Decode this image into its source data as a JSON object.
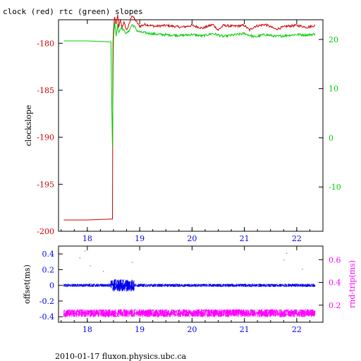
{
  "title": "clock (red) rtc (green) slopes",
  "footer": "2010-01-17 fluxon.physics.ubc.ca",
  "colors": {
    "red": "#cc0000",
    "green": "#00cc00",
    "blue": "#0000ee",
    "magenta": "#ff00ff",
    "axis": "#000000"
  },
  "chart_data": [
    {
      "type": "line",
      "ylabel_left": "clockslope",
      "xlim": [
        17.45,
        22.5
      ],
      "ylim_left": [
        -200,
        -177.5
      ],
      "ylim_right": [
        -19,
        24
      ],
      "x_ticks": [
        18,
        19,
        20,
        21,
        22
      ],
      "x_tick_labels": [
        "18",
        "19",
        "20",
        "21",
        "22"
      ],
      "y_ticks_left": [
        -180,
        -185,
        -190,
        -195,
        -200
      ],
      "y_tick_labels_left": [
        "-180",
        "-185",
        "-190",
        "-195",
        "-200"
      ],
      "y_ticks_right": [
        20,
        10,
        0,
        -10
      ],
      "y_tick_labels_right": [
        "20",
        "10",
        "0",
        "-10"
      ],
      "series": [
        {
          "name": "clock",
          "axis": "left",
          "color": "#cc0000",
          "x": [
            17.55,
            18.0,
            18.48,
            18.49,
            18.5,
            18.52,
            18.55,
            18.58,
            18.6,
            18.63,
            18.66,
            18.7,
            18.75,
            18.8,
            18.85,
            18.9,
            18.95,
            19.0,
            19.1,
            19.3,
            19.5,
            19.8,
            20.0,
            20.2,
            20.4,
            20.5,
            20.6,
            20.8,
            21.0,
            21.1,
            21.2,
            21.4,
            21.6,
            21.8,
            22.0,
            22.2,
            22.35
          ],
          "y": [
            -198.8,
            -198.8,
            -198.7,
            -180,
            -178.6,
            -177.2,
            -178,
            -177,
            -178.4,
            -177.5,
            -178.3,
            -177.8,
            -178.6,
            -178,
            -177,
            -177.4,
            -177.8,
            -178.2,
            -178,
            -178.2,
            -178.1,
            -178.3,
            -178.1,
            -178.4,
            -178,
            -178.6,
            -178.1,
            -178.2,
            -178.1,
            -178.6,
            -178.2,
            -178,
            -178.5,
            -178.2,
            -178.1,
            -178.3,
            -178.1
          ]
        },
        {
          "name": "rtc",
          "axis": "right",
          "color": "#00cc00",
          "x": [
            17.55,
            18.0,
            18.45,
            18.48,
            18.5,
            18.52,
            18.55,
            18.58,
            18.6,
            18.65,
            18.7,
            18.75,
            18.8,
            18.85,
            18.9,
            18.95,
            19.0,
            19.2,
            19.4,
            19.6,
            19.8,
            20.0,
            20.2,
            20.4,
            20.6,
            20.8,
            21.0,
            21.2,
            21.4,
            21.6,
            21.8,
            22.0,
            22.2,
            22.35
          ],
          "y": [
            19.7,
            19.7,
            19.5,
            -2,
            20,
            23.5,
            20.8,
            23,
            21.5,
            22.5,
            21.8,
            21.2,
            21.8,
            23,
            22.6,
            21.8,
            21.5,
            21.2,
            21,
            20.9,
            20.8,
            21,
            20.7,
            21.2,
            20.6,
            20.9,
            21.2,
            20.5,
            21,
            20.6,
            20.8,
            21,
            20.9,
            21.1
          ]
        }
      ]
    },
    {
      "type": "scatter",
      "ylabel_left": "offset(ms)",
      "ylabel_right": "rnd-trip(ms)",
      "xlim": [
        17.45,
        22.5
      ],
      "ylim_left": [
        -0.47,
        0.5
      ],
      "ylim_right": [
        0.05,
        0.72
      ],
      "x_ticks": [
        18,
        19,
        20,
        21,
        22
      ],
      "x_tick_labels": [
        "18",
        "19",
        "20",
        "21",
        "22"
      ],
      "y_ticks_left": [
        0.4,
        0.2,
        0,
        -0.2,
        -0.4
      ],
      "y_tick_labels_left": [
        "0.4",
        "0.2",
        "0",
        "-0.2",
        "-0.4"
      ],
      "y_ticks_right": [
        0.6,
        0.4,
        0.2
      ],
      "y_tick_labels_right": [
        "0.6",
        "0.4",
        "0.2"
      ],
      "series": [
        {
          "name": "offset",
          "axis": "left",
          "color": "#0000ee",
          "x_range": [
            17.55,
            22.35
          ],
          "baseline": 0.0,
          "spread": 0.02,
          "disturbed_range": [
            18.45,
            18.9
          ],
          "disturbed_spread": 0.08
        },
        {
          "name": "rnd-trip",
          "axis": "right",
          "color": "#ff00ff",
          "x_range": [
            17.55,
            22.35
          ],
          "baseline": 0.13,
          "spread": 0.035,
          "outliers_x": [
            17.85,
            17.95,
            18.05,
            18.3,
            18.85,
            21.75,
            21.8,
            22.1
          ],
          "outliers_y": [
            0.62,
            0.68,
            0.55,
            0.5,
            0.58,
            0.6,
            0.66,
            0.52
          ]
        }
      ]
    }
  ]
}
